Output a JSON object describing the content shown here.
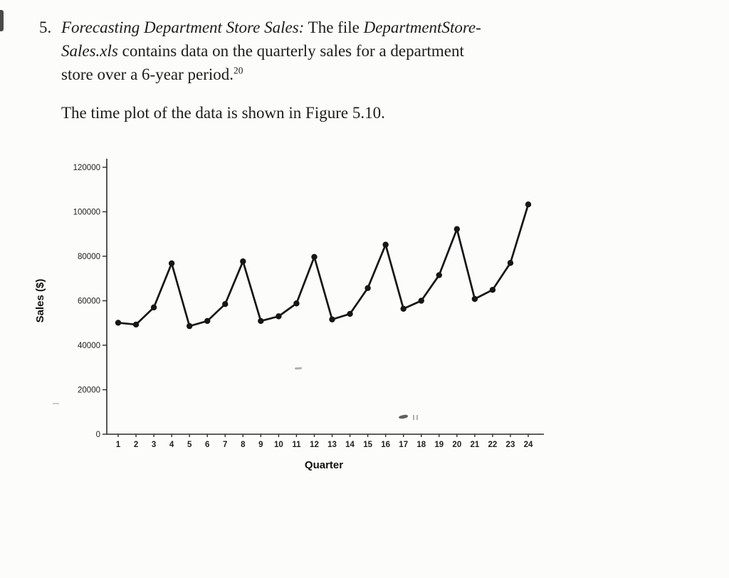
{
  "exercise": {
    "number": "5.",
    "lines": [
      {
        "seg1": "Forecasting Department Store Sales:",
        "seg2": " The file ",
        "seg3": "DepartmentStore-"
      },
      {
        "seg1": "Sales.xls",
        "seg2": " contains data on the quarterly sales for a department"
      },
      {
        "seg1": "store over a 6-year period.",
        "footnote": "20"
      }
    ],
    "figure_ref": "The time plot of the data is shown in Figure 5.10."
  },
  "chart_data": {
    "type": "line",
    "title": "",
    "xlabel": "Quarter",
    "ylabel": "Sales ($)",
    "x": [
      1,
      2,
      3,
      4,
      5,
      6,
      7,
      8,
      9,
      10,
      11,
      12,
      13,
      14,
      15,
      16,
      17,
      18,
      19,
      20,
      21,
      22,
      23,
      24
    ],
    "values": [
      50100,
      49300,
      57000,
      76800,
      48600,
      50900,
      58500,
      77700,
      50900,
      53000,
      58800,
      79700,
      51600,
      54100,
      65700,
      85200,
      56400,
      60000,
      71500,
      92200,
      60800,
      64900,
      77000,
      103300
    ],
    "ylim": [
      0,
      120000
    ],
    "y_ticks": [
      0,
      20000,
      40000,
      60000,
      80000,
      100000,
      120000
    ],
    "marker": "circle",
    "line_color": "#161616",
    "grid": false,
    "legend": "none"
  }
}
